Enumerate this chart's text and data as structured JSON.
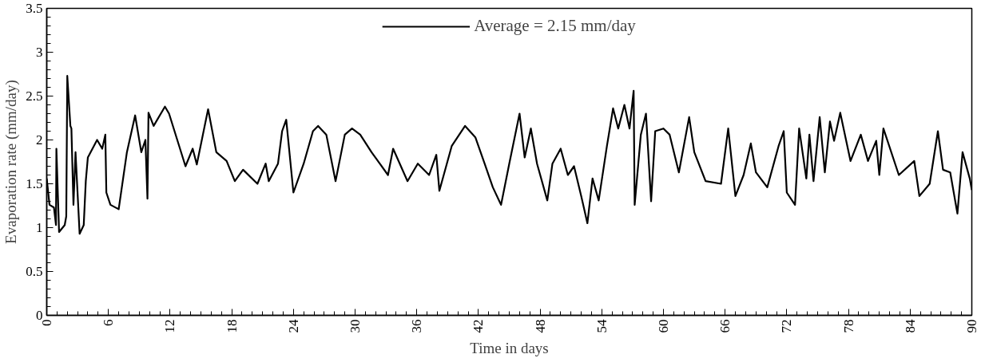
{
  "chart_data": {
    "type": "line",
    "xlabel": "Time in days",
    "ylabel": "Evaporation rate (mm/day)",
    "xlim": [
      0,
      90
    ],
    "xticks": [
      0,
      6,
      12,
      18,
      24,
      30,
      36,
      42,
      48,
      54,
      60,
      66,
      72,
      78,
      84,
      90
    ],
    "ylim": [
      0,
      3.5
    ],
    "yticks": [
      0,
      0.5,
      1,
      1.5,
      2,
      2.5,
      3,
      3.5
    ],
    "grid": false,
    "legend": "top",
    "marker": "none",
    "line_style": "solid",
    "x": [
      0,
      0.27,
      0.7,
      0.9,
      0.94,
      1.2,
      1.75,
      1.9,
      2.0,
      2.3,
      2.4,
      2.6,
      2.8,
      3.2,
      3.6,
      3.8,
      4.0,
      4.9,
      5.4,
      5.7,
      5.8,
      6.2,
      7.0,
      7.8,
      8.6,
      9.2,
      9.6,
      9.8,
      9.9,
      10.4,
      11.5,
      11.9,
      13.5,
      14.2,
      14.6,
      15.7,
      16.5,
      17.5,
      18.3,
      19.1,
      20.5,
      21.3,
      21.6,
      22.5,
      22.9,
      23.3,
      24.0,
      25.0,
      25.9,
      26.4,
      27.2,
      28.1,
      29.0,
      29.7,
      30.5,
      31.6,
      32.4,
      33.2,
      33.7,
      35.1,
      36.1,
      37.2,
      37.9,
      38.2,
      39.4,
      40.7,
      41.7,
      42.6,
      43.4,
      44.2,
      45.0,
      46.0,
      46.5,
      47.1,
      47.7,
      48.7,
      49.2,
      50.0,
      50.7,
      51.3,
      52.0,
      52.6,
      53.1,
      53.7,
      54.5,
      55.1,
      55.6,
      56.2,
      56.7,
      57.1,
      57.2,
      57.8,
      58.3,
      58.8,
      59.2,
      60.0,
      60.6,
      61.5,
      62.5,
      63.0,
      64.1,
      65.6,
      66.3,
      67.0,
      67.8,
      68.5,
      69.0,
      70.1,
      71.2,
      71.7,
      72.0,
      72.8,
      73.2,
      73.9,
      74.2,
      74.6,
      75.2,
      75.7,
      76.2,
      76.6,
      77.2,
      78.2,
      79.2,
      79.9,
      80.7,
      81.0,
      81.4,
      82.9,
      84.4,
      84.9,
      85.9,
      86.7,
      87.2,
      87.9,
      88.6,
      89.1,
      89.8,
      90
    ],
    "series": [
      {
        "name": "Average = 2.15 mm/day",
        "color": "#000000",
        "values": [
          1.56,
          1.26,
          1.23,
          1.03,
          1.9,
          0.95,
          1.03,
          1.13,
          2.73,
          2.16,
          2.13,
          1.26,
          1.86,
          0.93,
          1.03,
          1.53,
          1.8,
          2.0,
          1.9,
          2.06,
          1.4,
          1.26,
          1.21,
          1.86,
          2.28,
          1.86,
          2.0,
          1.33,
          2.31,
          2.16,
          2.38,
          2.3,
          1.7,
          1.9,
          1.72,
          2.35,
          1.86,
          1.76,
          1.53,
          1.66,
          1.5,
          1.73,
          1.53,
          1.73,
          2.1,
          2.23,
          1.4,
          1.73,
          2.1,
          2.16,
          2.06,
          1.53,
          2.06,
          2.13,
          2.06,
          1.86,
          1.73,
          1.6,
          1.9,
          1.53,
          1.73,
          1.6,
          1.83,
          1.42,
          1.93,
          2.16,
          2.03,
          1.73,
          1.46,
          1.26,
          1.73,
          2.3,
          1.8,
          2.13,
          1.73,
          1.31,
          1.73,
          1.9,
          1.6,
          1.7,
          1.36,
          1.05,
          1.56,
          1.31,
          1.93,
          2.36,
          2.13,
          2.4,
          2.13,
          2.56,
          1.26,
          2.06,
          2.3,
          1.3,
          2.1,
          2.13,
          2.06,
          1.63,
          2.26,
          1.86,
          1.53,
          1.5,
          2.13,
          1.36,
          1.6,
          1.96,
          1.63,
          1.46,
          1.93,
          2.1,
          1.4,
          1.26,
          2.13,
          1.56,
          2.06,
          1.53,
          2.26,
          1.63,
          2.21,
          1.99,
          2.31,
          1.76,
          2.06,
          1.76,
          1.99,
          1.6,
          2.13,
          1.6,
          1.76,
          1.36,
          1.5,
          2.1,
          1.66,
          1.63,
          1.16,
          1.86,
          1.56,
          1.43
        ]
      }
    ]
  }
}
